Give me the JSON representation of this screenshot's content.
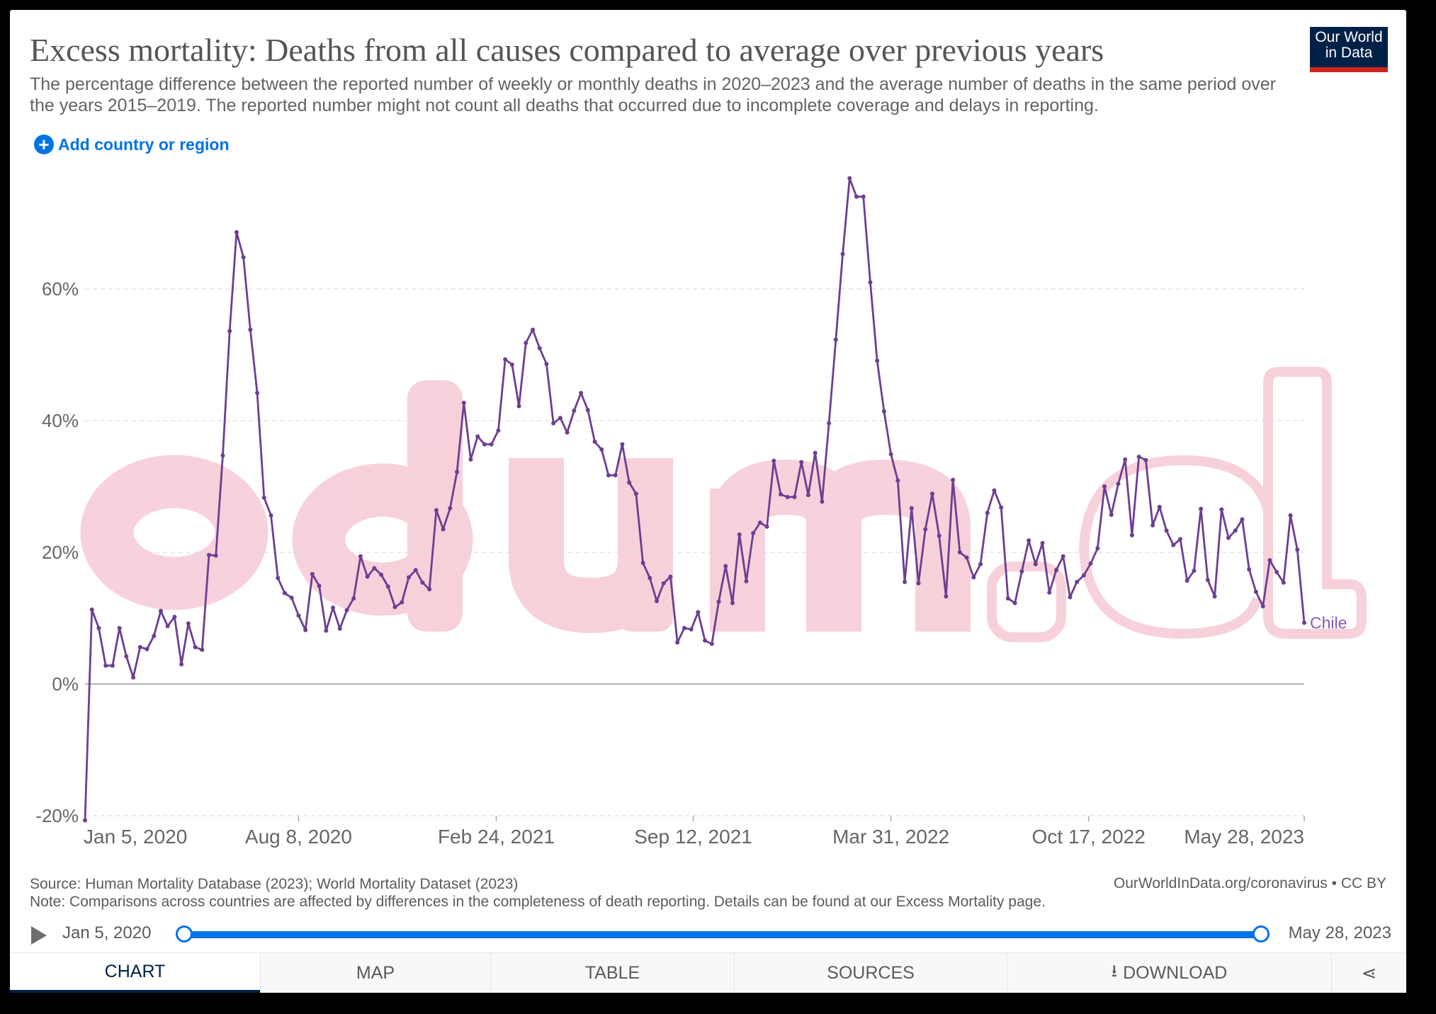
{
  "header": {
    "title": "Excess mortality: Deaths from all causes compared to average over previous years",
    "subtitle": "The percentage difference between the reported number of weekly or monthly deaths in 2020–2023 and the average number of deaths in the same period over the years 2015–2019. The reported number might not count all deaths that occurred due to incomplete coverage and delays in reporting.",
    "logo_line1": "Our World",
    "logo_line2": "in Data",
    "add_label": "Add country or region"
  },
  "footer": {
    "source": "Source: Human Mortality Database (2023); World Mortality Dataset (2023)",
    "note": "Note: Comparisons across countries are affected by differences in the completeness of death reporting. Details can be found at our Excess Mortality page.",
    "credit": "OurWorldInData.org/coronavirus • CC BY"
  },
  "timeline": {
    "start": "Jan 5, 2020",
    "end": "May 28, 2023"
  },
  "tabs": [
    {
      "label": "CHART",
      "active": true
    },
    {
      "label": "MAP"
    },
    {
      "label": "TABLE"
    },
    {
      "label": "SOURCES"
    },
    {
      "label": "DOWNLOAD"
    }
  ],
  "watermark": "odum.cl",
  "colors": {
    "line": "#6d3e91",
    "accent": "#0073e6",
    "watermark": "#f5c6d2"
  },
  "chart_data": {
    "type": "line",
    "title": "Excess mortality: Deaths from all causes compared to average over previous years",
    "xlabel": "",
    "ylabel": "",
    "ylim": [
      -20,
      80
    ],
    "yticks": [
      -20,
      0,
      20,
      40,
      60
    ],
    "ytick_labels": [
      "-20%",
      "0%",
      "20%",
      "40%",
      "60%"
    ],
    "x_start_week": 0,
    "x_end_week": 177,
    "xticks": [
      {
        "week": 0,
        "label": "Jan 5, 2020"
      },
      {
        "week": 31,
        "label": "Aug 8, 2020"
      },
      {
        "week": 59.7,
        "label": "Feb 24, 2021"
      },
      {
        "week": 88.3,
        "label": "Sep 12, 2021"
      },
      {
        "week": 117,
        "label": "Mar 31, 2022"
      },
      {
        "week": 145.7,
        "label": "Oct 17, 2022"
      },
      {
        "week": 177,
        "label": "May 28, 2023"
      }
    ],
    "grid": true,
    "series": [
      {
        "name": "Chile",
        "unit": "%",
        "frequency": "weekly",
        "values": [
          -20.7,
          11.3,
          8.5,
          2.8,
          2.8,
          8.5,
          4.2,
          1.0,
          5.6,
          5.3,
          7.3,
          11.1,
          8.8,
          10.2,
          3.0,
          9.2,
          5.6,
          5.2,
          19.6,
          19.5,
          34.7,
          53.6,
          68.6,
          64.8,
          53.8,
          44.2,
          28.3,
          25.6,
          16.1,
          13.8,
          13.1,
          10.4,
          8.2,
          16.7,
          14.9,
          8.1,
          11.6,
          8.4,
          11.2,
          13.0,
          19.4,
          16.3,
          17.6,
          16.6,
          14.8,
          11.7,
          12.4,
          16.2,
          17.3,
          15.4,
          14.4,
          26.4,
          23.5,
          26.7,
          32.2,
          42.7,
          34.1,
          37.6,
          36.4,
          36.4,
          38.5,
          49.3,
          48.5,
          42.2,
          51.8,
          53.8,
          51.0,
          48.6,
          39.6,
          40.4,
          38.2,
          41.5,
          44.2,
          41.6,
          36.8,
          35.6,
          31.7,
          31.7,
          36.4,
          30.6,
          28.9,
          18.4,
          16.1,
          12.6,
          15.3,
          16.3,
          6.3,
          8.5,
          8.3,
          10.9,
          6.6,
          6.1,
          12.5,
          17.9,
          12.3,
          22.7,
          15.6,
          22.9,
          24.5,
          23.9,
          33.9,
          28.8,
          28.4,
          28.4,
          33.7,
          28.7,
          35.1,
          27.7,
          39.6,
          52.3,
          65.3,
          76.8,
          74.0,
          74.0,
          61.0,
          49.1,
          41.4,
          34.9,
          30.9,
          15.5,
          26.7,
          15.3,
          23.5,
          28.9,
          22.5,
          13.3,
          31.0,
          20.0,
          19.2,
          16.2,
          18.2,
          26.0,
          29.4,
          26.8,
          13.0,
          12.3,
          17.1,
          21.8,
          18.2,
          21.4,
          13.9,
          17.3,
          19.4,
          13.2,
          15.5,
          16.5,
          18.3,
          20.6,
          30.0,
          25.7,
          30.4,
          34.1,
          22.6,
          34.5,
          34.0,
          24.1,
          26.9,
          23.3,
          21.1,
          22.0,
          15.7,
          17.2,
          26.6,
          15.8,
          13.3,
          26.5,
          22.2,
          23.3,
          25.0,
          17.4,
          14.0,
          11.8,
          18.8,
          17.0,
          15.4,
          25.6,
          20.4,
          9.3
        ]
      }
    ],
    "legend": "end-of-line label"
  }
}
